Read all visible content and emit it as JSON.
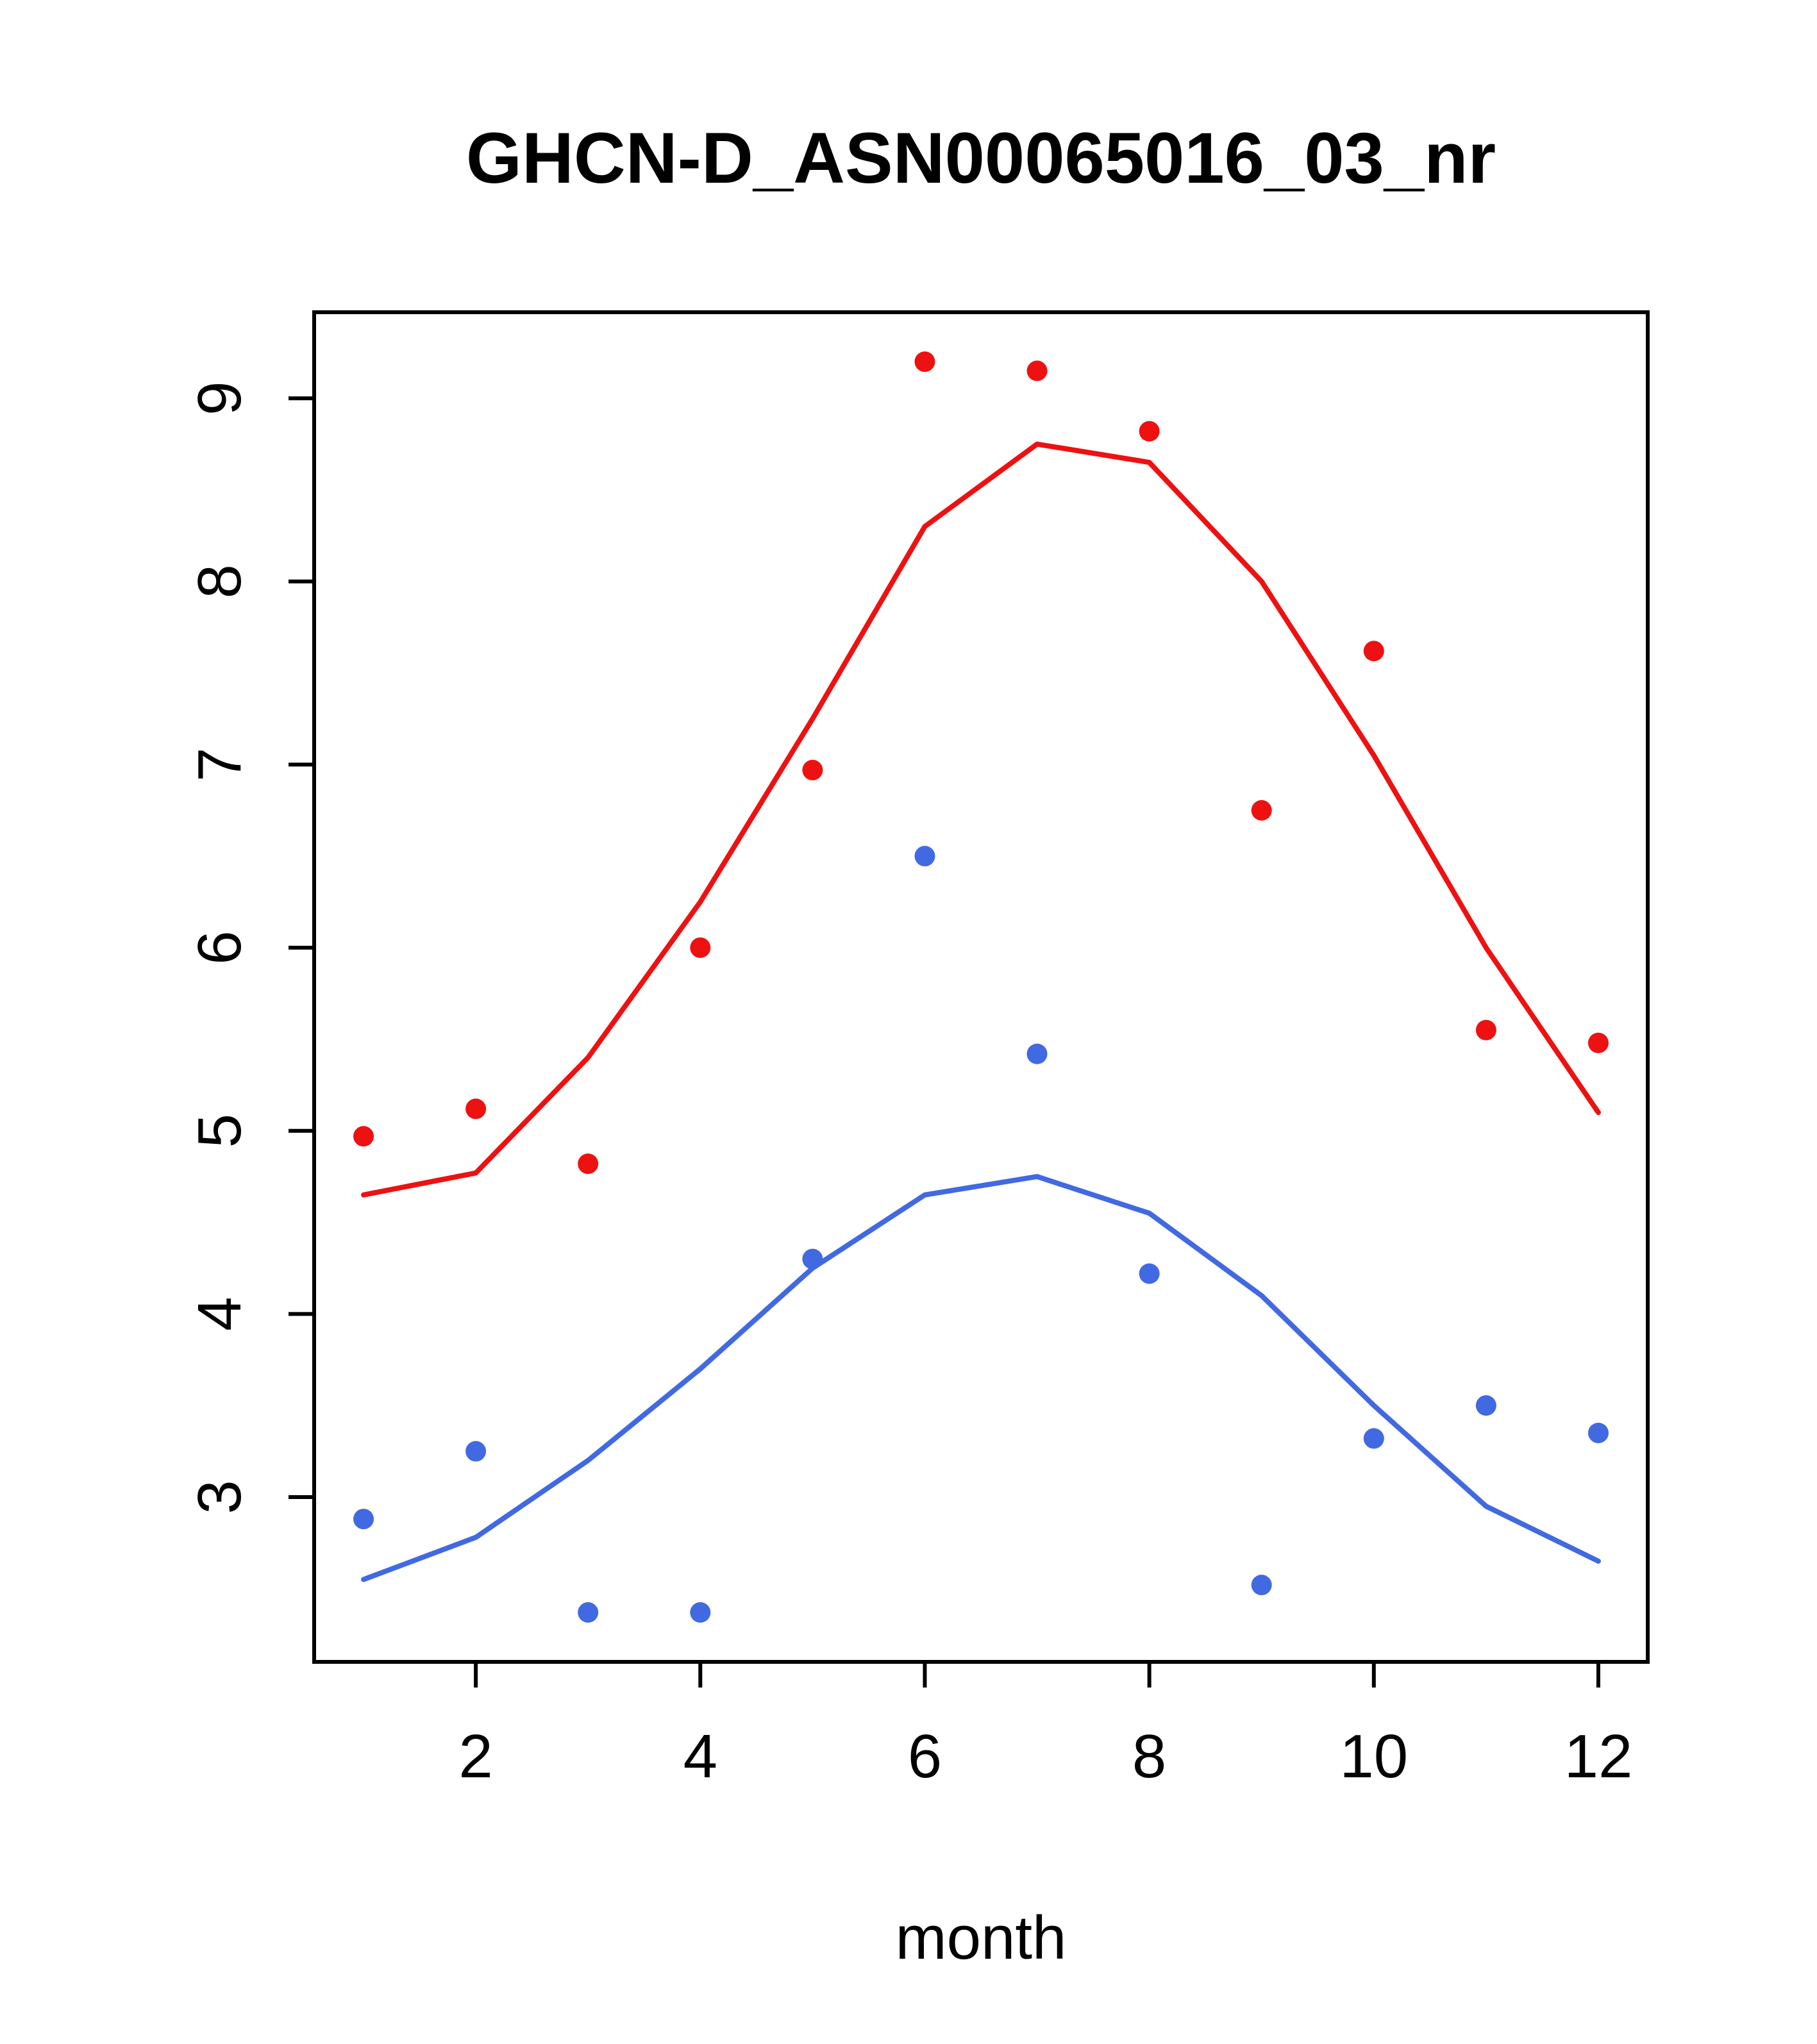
{
  "chart_data": {
    "type": "scatter",
    "title": "GHCN-D_ASN00065016_03_nr",
    "xlabel": "month",
    "ylabel": "",
    "x": [
      1,
      2,
      3,
      4,
      5,
      6,
      7,
      8,
      9,
      10,
      11,
      12
    ],
    "xticks": [
      2,
      4,
      6,
      8,
      10,
      12
    ],
    "yticks": [
      3,
      4,
      5,
      6,
      7,
      8,
      9
    ],
    "xlim": [
      0.56,
      12.44
    ],
    "ylim": [
      2.1,
      9.47
    ],
    "grid": false,
    "legend": "none",
    "colors": {
      "upper": "#ee1111",
      "lower": "#4169e1",
      "axis": "#000000"
    },
    "series": [
      {
        "name": "upper-points",
        "style": "points",
        "color": "#ee1111",
        "values": [
          4.97,
          5.12,
          4.82,
          6.0,
          6.97,
          9.2,
          9.15,
          8.82,
          6.75,
          7.62,
          5.55,
          5.48
        ]
      },
      {
        "name": "upper-smooth",
        "style": "line",
        "color": "#ee1111",
        "values": [
          4.65,
          4.77,
          5.4,
          6.25,
          7.25,
          8.3,
          8.75,
          8.65,
          8.0,
          7.05,
          6.0,
          5.1
        ]
      },
      {
        "name": "lower-points",
        "style": "points",
        "color": "#4169e1",
        "values": [
          2.88,
          3.25,
          2.37,
          2.37,
          4.3,
          6.5,
          5.42,
          4.22,
          2.52,
          3.32,
          3.5,
          3.35
        ]
      },
      {
        "name": "lower-smooth",
        "style": "line",
        "color": "#4169e1",
        "values": [
          2.55,
          2.78,
          3.2,
          3.7,
          4.25,
          4.65,
          4.75,
          4.55,
          4.1,
          3.5,
          2.95,
          2.65
        ]
      }
    ]
  }
}
